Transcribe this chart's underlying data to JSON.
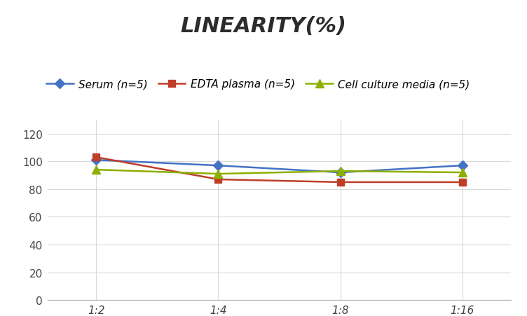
{
  "title": "LINEARITY(%)",
  "x_labels": [
    "1:2",
    "1:4",
    "1:8",
    "1:16"
  ],
  "x_positions": [
    0,
    1,
    2,
    3
  ],
  "series": [
    {
      "label": "Serum (n=5)",
      "values": [
        101,
        97,
        92,
        97
      ],
      "color": "#4472C4",
      "marker": "D",
      "marker_size": 7,
      "linewidth": 1.8
    },
    {
      "label": "EDTA plasma (n=5)",
      "values": [
        103,
        87,
        85,
        85
      ],
      "color": "#BE3E28",
      "marker": "s",
      "marker_size": 7,
      "linewidth": 1.8
    },
    {
      "label": "Cell culture media (n=5)",
      "values": [
        94,
        91,
        93,
        92
      ],
      "color": "#8DB000",
      "marker": "^",
      "marker_size": 8,
      "linewidth": 1.8
    }
  ],
  "ylim": [
    0,
    130
  ],
  "yticks": [
    0,
    20,
    40,
    60,
    80,
    100,
    120
  ],
  "grid_color": "#D9D9D9",
  "background_color": "#FFFFFF",
  "title_fontsize": 22,
  "legend_fontsize": 11,
  "tick_fontsize": 11
}
